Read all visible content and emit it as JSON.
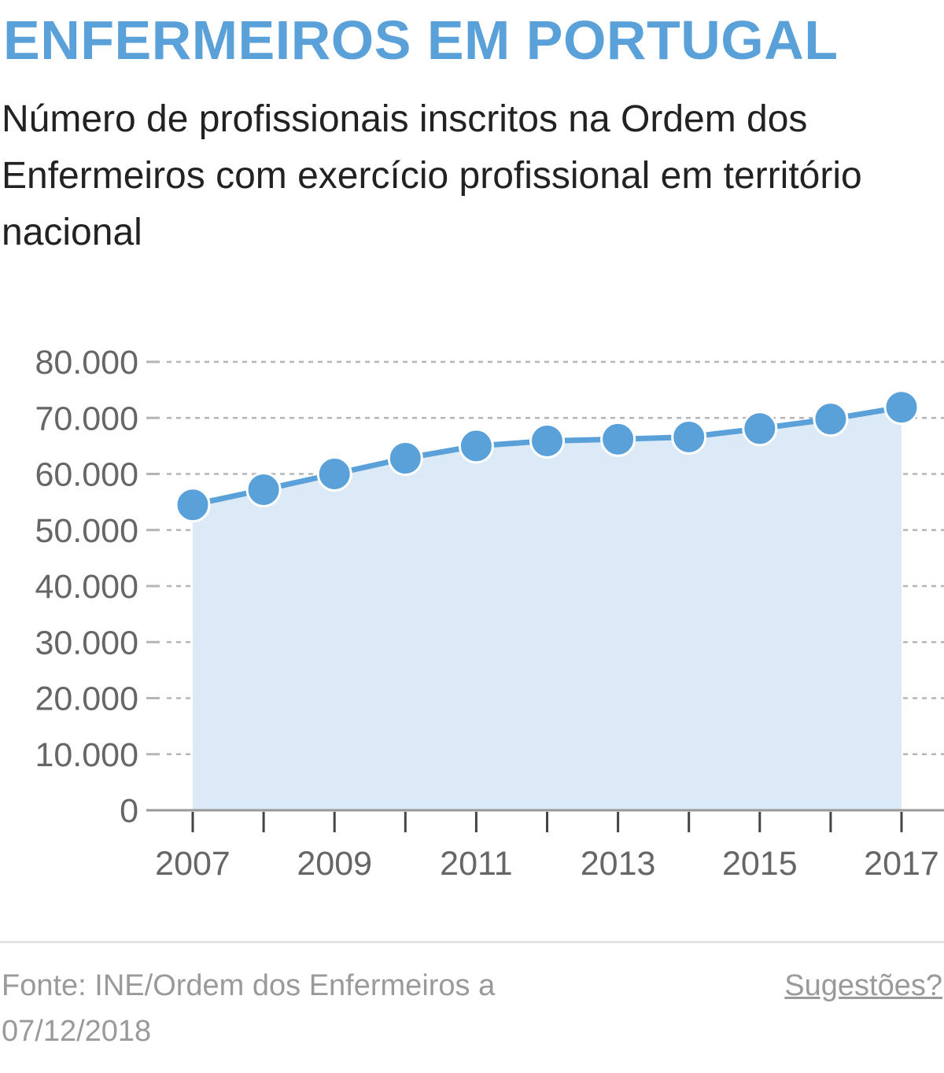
{
  "header": {
    "title": "ENFERMEIROS EM PORTUGAL",
    "subtitle": "Número de profissionais inscritos na Ordem dos Enfermeiros com exercício profissional em território nacional"
  },
  "footer": {
    "source": "Fonte: INE/Ordem dos Enfermeiros a 07/12/2018",
    "suggestions_link": "Sugestões?"
  },
  "colors": {
    "accent": "#5aa1da",
    "area_fill": "#dceaf7",
    "grid": "#b5b5b5",
    "axis": "#999999"
  },
  "chart_data": {
    "type": "area",
    "title": "ENFERMEIROS EM PORTUGAL",
    "xlabel": "",
    "ylabel": "",
    "x": [
      2007,
      2008,
      2009,
      2010,
      2011,
      2012,
      2013,
      2014,
      2015,
      2016,
      2017
    ],
    "values": [
      54500,
      57200,
      60000,
      62800,
      65000,
      65900,
      66200,
      66600,
      68100,
      69800,
      71900
    ],
    "ylim": [
      0,
      80000
    ],
    "y_ticks": [
      0,
      10000,
      20000,
      30000,
      40000,
      50000,
      60000,
      70000,
      80000
    ],
    "y_tick_labels": [
      "0",
      "10.000",
      "20.000",
      "30.000",
      "40.000",
      "50.000",
      "60.000",
      "70.000",
      "80.000"
    ],
    "x_tick_labels": [
      "2007",
      "2009",
      "2011",
      "2013",
      "2015",
      "2017"
    ],
    "grid": true,
    "markers": true
  }
}
